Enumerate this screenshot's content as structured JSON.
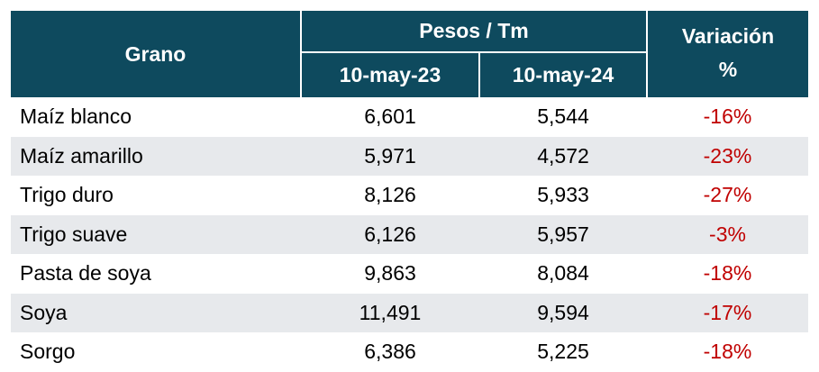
{
  "table": {
    "header": {
      "grano": "Grano",
      "pesos_group": "Pesos / Tm",
      "date_1": "10-may-23",
      "date_2": "10-may-24",
      "variacion_line1": "Variación",
      "variacion_line2": "%"
    },
    "rows": [
      {
        "grano": "Maíz blanco",
        "v2023": "6,601",
        "v2024": "5,544",
        "var": "-16%"
      },
      {
        "grano": "Maíz amarillo",
        "v2023": "5,971",
        "v2024": "4,572",
        "var": "-23%"
      },
      {
        "grano": "Trigo duro",
        "v2023": "8,126",
        "v2024": "5,933",
        "var": "-27%"
      },
      {
        "grano": "Trigo suave",
        "v2023": "6,126",
        "v2024": "5,957",
        "var": "-3%"
      },
      {
        "grano": "Pasta de soya",
        "v2023": "9,863",
        "v2024": "8,084",
        "var": "-18%"
      },
      {
        "grano": "Soya",
        "v2023": "11,491",
        "v2024": "9,594",
        "var": "-17%"
      },
      {
        "grano": "Sorgo",
        "v2023": "6,386",
        "v2024": "5,225",
        "var": "-18%"
      }
    ],
    "colors": {
      "header_bg": "#0e4a5e",
      "header_text": "#ffffff",
      "row_alt_bg": "#e7e9ec",
      "negative_text": "#c00000"
    }
  }
}
